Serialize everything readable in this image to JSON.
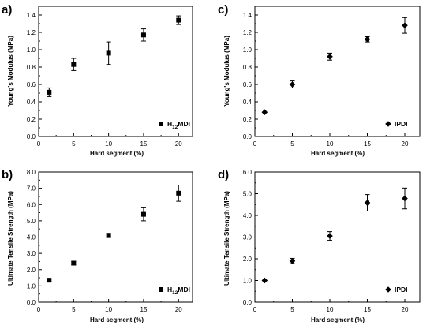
{
  "figure": {
    "panels": [
      {
        "key": "a",
        "letter": "a)"
      },
      {
        "key": "c",
        "letter": "c)"
      },
      {
        "key": "b",
        "letter": "b)"
      },
      {
        "key": "d",
        "letter": "d)"
      }
    ]
  },
  "chart_data": [
    {
      "id": "a",
      "type": "scatter",
      "title": "",
      "xlabel": "Hard segment (%)",
      "ylabel": "Young's Modulus (MPa)",
      "xlim": [
        0,
        22
      ],
      "ylim": [
        0,
        1.5
      ],
      "xticks": [
        "0",
        "5",
        "10",
        "15",
        "20"
      ],
      "yticks": [
        "0.0",
        "0.2",
        "0.4",
        "0.6",
        "0.8",
        "1.0",
        "1.2",
        "1.4"
      ],
      "grid": false,
      "legend": {
        "position": "bottom-right",
        "entries": [
          {
            "label_main": "H",
            "label_sub": "12",
            "label_tail": "MDI",
            "marker": "square"
          }
        ]
      },
      "series": [
        {
          "marker": "square",
          "x": [
            1.5,
            5,
            10,
            15,
            20
          ],
          "y": [
            0.51,
            0.83,
            0.96,
            1.17,
            1.34
          ],
          "err": [
            0.05,
            0.07,
            0.13,
            0.07,
            0.05
          ]
        }
      ]
    },
    {
      "id": "c",
      "type": "scatter",
      "title": "",
      "xlabel": "Hard segment (%)",
      "ylabel": "Young's Modulus (MPa)",
      "xlim": [
        0,
        22
      ],
      "ylim": [
        0,
        1.5
      ],
      "xticks": [
        "0",
        "5",
        "10",
        "15",
        "20"
      ],
      "yticks": [
        "0.0",
        "0.2",
        "0.4",
        "0.6",
        "0.8",
        "1.0",
        "1.2",
        "1.4"
      ],
      "grid": false,
      "legend": {
        "position": "bottom-right",
        "entries": [
          {
            "label_main": "IPDI",
            "label_sub": "",
            "label_tail": "",
            "marker": "diamond"
          }
        ]
      },
      "series": [
        {
          "marker": "diamond",
          "x": [
            1.3,
            5,
            10,
            15,
            20
          ],
          "y": [
            0.28,
            0.6,
            0.92,
            1.12,
            1.28
          ],
          "err": [
            0.0,
            0.04,
            0.04,
            0.03,
            0.09
          ]
        }
      ]
    },
    {
      "id": "b",
      "type": "scatter",
      "title": "",
      "xlabel": "Hard segment (%)",
      "ylabel": "Ultimate Tensile Strength (MPa)",
      "xlim": [
        0,
        22
      ],
      "ylim": [
        0,
        8
      ],
      "xticks": [
        "0",
        "5",
        "10",
        "15",
        "20"
      ],
      "yticks": [
        "0.0",
        "1.0",
        "2.0",
        "3.0",
        "4.0",
        "5.0",
        "6.0",
        "7.0",
        "8.0"
      ],
      "grid": false,
      "legend": {
        "position": "bottom-right",
        "entries": [
          {
            "label_main": "H",
            "label_sub": "12",
            "label_tail": "MDI",
            "marker": "square"
          }
        ]
      },
      "series": [
        {
          "marker": "square",
          "x": [
            1.5,
            5,
            10,
            15,
            20
          ],
          "y": [
            1.35,
            2.4,
            4.1,
            5.4,
            6.7
          ],
          "err": [
            0.07,
            0.1,
            0.13,
            0.4,
            0.5
          ]
        }
      ]
    },
    {
      "id": "d",
      "type": "scatter",
      "title": "",
      "xlabel": "Hard segment (%)",
      "ylabel": "Ultimate Tensile Strength (MPa)",
      "xlim": [
        0,
        22
      ],
      "ylim": [
        0,
        6
      ],
      "xticks": [
        "0",
        "5",
        "10",
        "15",
        "20"
      ],
      "yticks": [
        "0.0",
        "1.0",
        "2.0",
        "3.0",
        "4.0",
        "5.0",
        "6.0"
      ],
      "grid": false,
      "legend": {
        "position": "bottom-right",
        "entries": [
          {
            "label_main": "IPDI",
            "label_sub": "",
            "label_tail": "",
            "marker": "diamond"
          }
        ]
      },
      "series": [
        {
          "marker": "diamond",
          "x": [
            1.3,
            5,
            10,
            15,
            20
          ],
          "y": [
            1.0,
            1.9,
            3.05,
            4.58,
            4.78
          ],
          "err": [
            0.0,
            0.12,
            0.2,
            0.38,
            0.48
          ]
        }
      ]
    }
  ]
}
